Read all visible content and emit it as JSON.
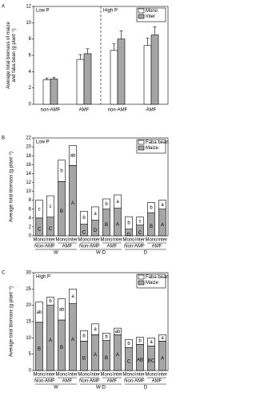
{
  "chart_data": [
    {
      "type": "bar",
      "panel_label": "A",
      "annotations": [
        "Low P",
        "High P"
      ],
      "ylabel": [
        "Average total biomass of maize",
        "and faba bean (g plant⁻¹)"
      ],
      "categories": [
        "non-AMF",
        "AMF",
        "non-AMF",
        "AMF"
      ],
      "series": [
        {
          "name": "Mono",
          "color": "#ffffff",
          "values": [
            3.0,
            5.5,
            6.6,
            7.2
          ],
          "errors": [
            0.2,
            0.6,
            0.8,
            0.9
          ]
        },
        {
          "name": "Inter",
          "color": "#a6a6a6",
          "values": [
            3.1,
            6.2,
            8.0,
            8.5
          ],
          "errors": [
            0.2,
            0.6,
            1.0,
            1.0
          ]
        }
      ],
      "ylim": [
        0,
        12
      ],
      "yticks": [
        0,
        2,
        4,
        6,
        8,
        10,
        12
      ],
      "legend": "upper right"
    },
    {
      "type": "stacked_bar",
      "panel_label": "B",
      "annotations": [
        "Low P"
      ],
      "ylabel": [
        "Average total biomass (g plant⁻¹)"
      ],
      "categories": [
        "Mono",
        "Inter",
        "Mono",
        "Inter",
        "Mono",
        "Inter",
        "Mono",
        "Inter",
        "Mono",
        "Inter",
        "Mono",
        "Inter"
      ],
      "treatments": [
        "Non-AMF",
        "AMF",
        "Non-AMF",
        "AMF",
        "Non-AMF",
        "AMF"
      ],
      "water": [
        "W",
        "W-D",
        "D"
      ],
      "series": [
        {
          "name": "Maize",
          "color": "#a6a6a6",
          "values": [
            4.0,
            4.2,
            12.2,
            15.8,
            2.6,
            3.5,
            6.0,
            6.2,
            1.5,
            2.4,
            5.2,
            6.0
          ],
          "letters": [
            "C",
            "C",
            "B",
            "A",
            "C",
            "D",
            "B",
            "A",
            "D",
            "C",
            "B",
            "A"
          ]
        },
        {
          "name": "Faba bean",
          "color": "#ffffff",
          "values": [
            4.0,
            4.8,
            4.8,
            4.5,
            2.9,
            3.0,
            2.3,
            3.0,
            2.8,
            1.8,
            2.3,
            2.0
          ],
          "letters": [
            "c",
            "c",
            "b",
            "ab",
            "b",
            "a",
            "b",
            "a",
            "b",
            "c",
            "b",
            "a"
          ]
        }
      ],
      "ylim": [
        0,
        22
      ],
      "yticks": [
        0,
        2,
        4,
        6,
        8,
        10,
        12,
        14,
        16,
        18,
        20,
        22
      ],
      "legend": "upper right"
    },
    {
      "type": "stacked_bar",
      "panel_label": "C",
      "annotations": [
        "High P"
      ],
      "ylabel": [
        "Average total biomass (g plant⁻¹)"
      ],
      "categories": [
        "Mono",
        "Inter",
        "Mono",
        "Inter",
        "Mono",
        "Inter",
        "Mono",
        "Inter",
        "Mono",
        "Inter",
        "Mono",
        "Inter"
      ],
      "treatments": [
        "Non-AMF",
        "AMF",
        "Non-AMF",
        "AMF",
        "Non-AMF",
        "AMF"
      ],
      "water": [
        "W",
        "W-D",
        "D"
      ],
      "series": [
        {
          "name": "Maize",
          "color": "#a6a6a6",
          "values": [
            14.8,
            20.0,
            15.5,
            20.5,
            9.0,
            11.0,
            9.2,
            11.0,
            7.0,
            8.0,
            7.5,
            9.0
          ],
          "letters": [
            "B",
            "A",
            "B",
            "A",
            "B",
            "A",
            "B",
            "A",
            "C",
            "AB",
            "BC",
            "A"
          ]
        },
        {
          "name": "Faba bean",
          "color": "#ffffff",
          "values": [
            6.2,
            2.5,
            6.5,
            4.5,
            3.2,
            3.3,
            2.3,
            2.0,
            2.5,
            2.2,
            2.5,
            2.0
          ],
          "letters": [
            "ab",
            "b",
            "ab",
            "a",
            "b",
            "a",
            "b",
            "ab",
            "b",
            "b",
            "a",
            "a"
          ]
        }
      ],
      "ylim": [
        0,
        30
      ],
      "yticks": [
        0,
        5,
        10,
        15,
        20,
        25,
        30
      ],
      "legend": "upper right"
    }
  ]
}
